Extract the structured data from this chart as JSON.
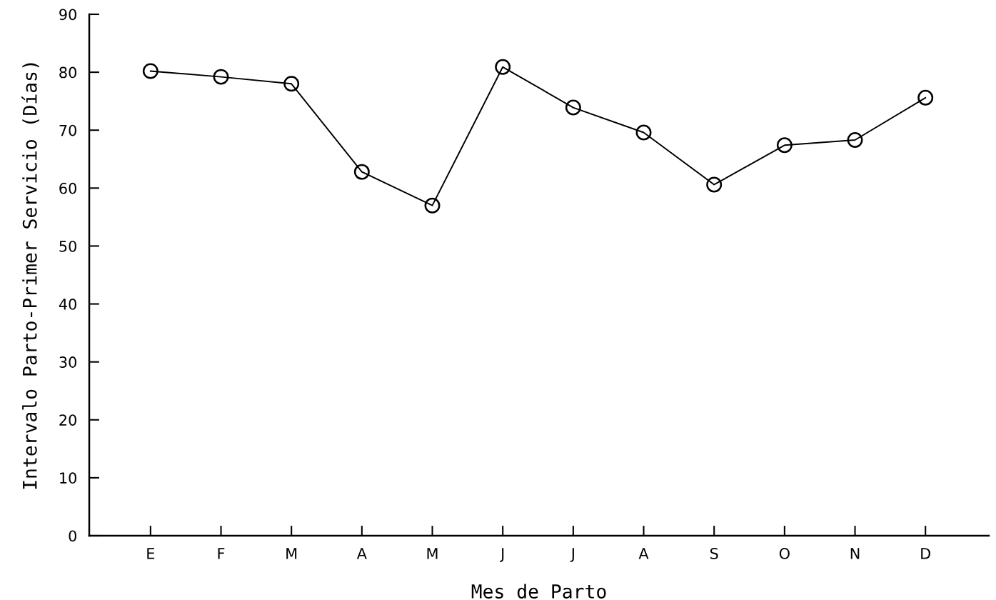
{
  "chart_data": {
    "type": "line",
    "xlabel": "Mes de Parto",
    "ylabel": "Intervalo Parto-Primer Servicio (Días)",
    "categories": [
      "E",
      "F",
      "M",
      "A",
      "M",
      "J",
      "J",
      "A",
      "S",
      "O",
      "N",
      "D"
    ],
    "series": [
      {
        "color": "#000000",
        "values": [
          80.2,
          79.2,
          78.0,
          62.8,
          57.0,
          80.9,
          73.9,
          69.6,
          60.6,
          67.4,
          68.3,
          75.6
        ]
      }
    ],
    "ylim": [
      0,
      90
    ],
    "yticks": [
      0,
      10,
      20,
      30,
      40,
      50,
      60,
      70,
      80,
      90
    ],
    "marker": "circle",
    "line_style": "solid",
    "grid": false,
    "legend": false
  }
}
